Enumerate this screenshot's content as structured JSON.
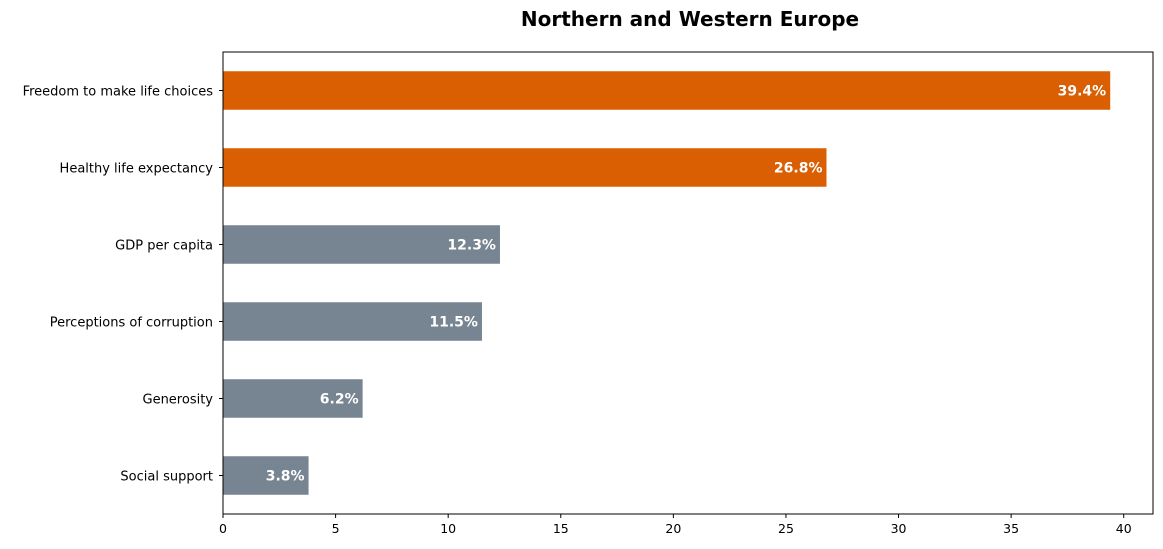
{
  "chart_data": {
    "type": "bar",
    "orientation": "horizontal",
    "title": "Northern and Western Europe",
    "xlabel": "",
    "ylabel": "",
    "categories": [
      "Freedom to make life choices",
      "Healthy life expectancy",
      "GDP per capita",
      "Perceptions of corruption",
      "Generosity",
      "Social support"
    ],
    "values": [
      39.4,
      26.8,
      12.3,
      11.5,
      6.2,
      3.8
    ],
    "value_labels": [
      "39.4%",
      "26.8%",
      "12.3%",
      "11.5%",
      "6.2%",
      "3.8%"
    ],
    "xlim": [
      0,
      41.3
    ],
    "xticks": [
      0,
      5,
      10,
      15,
      20,
      25,
      30,
      35,
      40
    ],
    "grid": false,
    "legend": "none",
    "colors": {
      "highlight": "#d95f02",
      "default": "#778491"
    },
    "highlighted_categories": [
      "Freedom to make life choices",
      "Healthy life expectancy"
    ]
  }
}
